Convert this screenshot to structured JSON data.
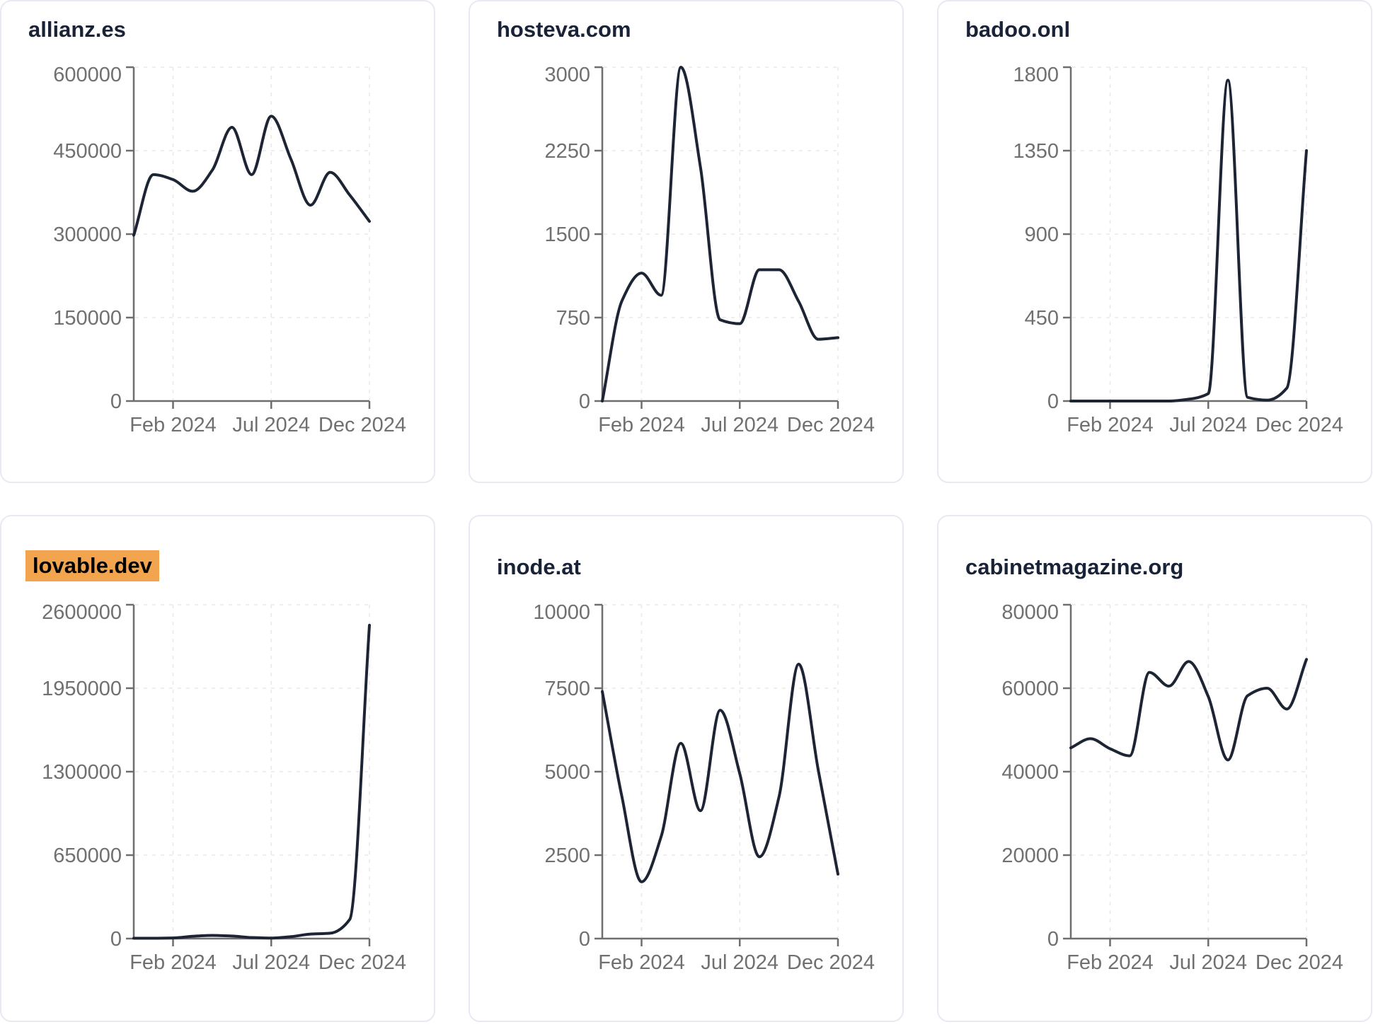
{
  "style": {
    "line_color": "#1d2434",
    "title_color": "#1a2238",
    "axis_color": "#6e6e6e",
    "tick_label_color": "#707070",
    "grid_color": "#e9e9e9",
    "card_border_color": "#e7eaf2",
    "highlight_bg": "#f2a44e",
    "highlight_text": "#000000",
    "background": "#ffffff"
  },
  "x_tick_labels": [
    "Feb 2024",
    "Jul 2024",
    "Dec 2024"
  ],
  "x_tick_indices": [
    2,
    7,
    12
  ],
  "chart_data": [
    {
      "type": "line",
      "title": "allianz.es",
      "title_highlighted": false,
      "x": [
        "Dec 2023",
        "Jan 2024",
        "Feb 2024",
        "Mar 2024",
        "Apr 2024",
        "May 2024",
        "Jun 2024",
        "Jul 2024",
        "Aug 2024",
        "Sep 2024",
        "Oct 2024",
        "Nov 2024",
        "Dec 2024"
      ],
      "values": [
        298000,
        407000,
        398000,
        377000,
        415000,
        492000,
        407000,
        512000,
        435000,
        352000,
        411000,
        370000,
        323000
      ],
      "y_ticks": [
        0,
        150000,
        300000,
        450000,
        600000
      ],
      "ylim": [
        0,
        600000
      ],
      "x_tick_labels": [
        "Feb 2024",
        "Jul 2024",
        "Dec 2024"
      ],
      "grid": "dashed",
      "legend": false
    },
    {
      "type": "line",
      "title": "hosteva.com",
      "title_highlighted": false,
      "x": [
        "Dec 2023",
        "Jan 2024",
        "Feb 2024",
        "Mar 2024",
        "Apr 2024",
        "May 2024",
        "Jun 2024",
        "Jul 2024",
        "Aug 2024",
        "Sep 2024",
        "Oct 2024",
        "Nov 2024",
        "Dec 2024"
      ],
      "values": [
        0,
        900,
        1150,
        950,
        3000,
        2100,
        730,
        695,
        1180,
        1180,
        895,
        555,
        570
      ],
      "y_ticks": [
        0,
        750,
        1500,
        2250,
        3000
      ],
      "ylim": [
        0,
        3000
      ],
      "x_tick_labels": [
        "Feb 2024",
        "Jul 2024",
        "Dec 2024"
      ],
      "grid": "dashed",
      "legend": false
    },
    {
      "type": "line",
      "title": "badoo.onl",
      "title_highlighted": false,
      "x": [
        "Dec 2023",
        "Jan 2024",
        "Feb 2024",
        "Mar 2024",
        "Apr 2024",
        "May 2024",
        "Jun 2024",
        "Jul 2024",
        "Aug 2024",
        "Sep 2024",
        "Oct 2024",
        "Nov 2024",
        "Dec 2024"
      ],
      "values": [
        0,
        0,
        0,
        0,
        0,
        0,
        10,
        40,
        1730,
        20,
        5,
        70,
        1350
      ],
      "y_ticks": [
        0,
        450,
        900,
        1350,
        1800
      ],
      "ylim": [
        0,
        1800
      ],
      "x_tick_labels": [
        "Feb 2024",
        "Jul 2024",
        "Dec 2024"
      ],
      "grid": "dashed",
      "legend": false
    },
    {
      "type": "line",
      "title": "lovable.dev",
      "title_highlighted": true,
      "x": [
        "Dec 2023",
        "Jan 2024",
        "Feb 2024",
        "Mar 2024",
        "Apr 2024",
        "May 2024",
        "Jun 2024",
        "Jul 2024",
        "Aug 2024",
        "Sep 2024",
        "Oct 2024",
        "Nov 2024",
        "Dec 2024"
      ],
      "values": [
        3000,
        3000,
        5000,
        18000,
        25000,
        20000,
        8000,
        4000,
        15000,
        35000,
        42000,
        150000,
        2440000
      ],
      "y_ticks": [
        0,
        650000,
        1300000,
        1950000,
        2600000
      ],
      "ylim": [
        0,
        2600000
      ],
      "x_tick_labels": [
        "Feb 2024",
        "Jul 2024",
        "Dec 2024"
      ],
      "grid": "dashed",
      "legend": false
    },
    {
      "type": "line",
      "title": "inode.at",
      "title_highlighted": false,
      "x": [
        "Dec 2023",
        "Jan 2024",
        "Feb 2024",
        "Mar 2024",
        "Apr 2024",
        "May 2024",
        "Jun 2024",
        "Jul 2024",
        "Aug 2024",
        "Sep 2024",
        "Oct 2024",
        "Nov 2024",
        "Dec 2024"
      ],
      "values": [
        7400,
        4250,
        1700,
        3060,
        5850,
        3830,
        6840,
        4940,
        2450,
        4250,
        8220,
        5040,
        1930
      ],
      "y_ticks": [
        0,
        2500,
        5000,
        7500,
        10000
      ],
      "ylim": [
        0,
        10000
      ],
      "x_tick_labels": [
        "Feb 2024",
        "Jul 2024",
        "Dec 2024"
      ],
      "grid": "dashed",
      "legend": false
    },
    {
      "type": "line",
      "title": "cabinetmagazine.org",
      "title_highlighted": false,
      "x": [
        "Dec 2023",
        "Jan 2024",
        "Feb 2024",
        "Mar 2024",
        "Apr 2024",
        "May 2024",
        "Jun 2024",
        "Jul 2024",
        "Aug 2024",
        "Sep 2024",
        "Oct 2024",
        "Nov 2024",
        "Dec 2024"
      ],
      "values": [
        45700,
        47900,
        45500,
        43800,
        63800,
        60500,
        66400,
        58000,
        42800,
        58200,
        60000,
        55000,
        66900
      ],
      "y_ticks": [
        0,
        20000,
        40000,
        60000,
        80000
      ],
      "ylim": [
        0,
        80000
      ],
      "x_tick_labels": [
        "Feb 2024",
        "Jul 2024",
        "Dec 2024"
      ],
      "grid": "dashed",
      "legend": false
    }
  ]
}
